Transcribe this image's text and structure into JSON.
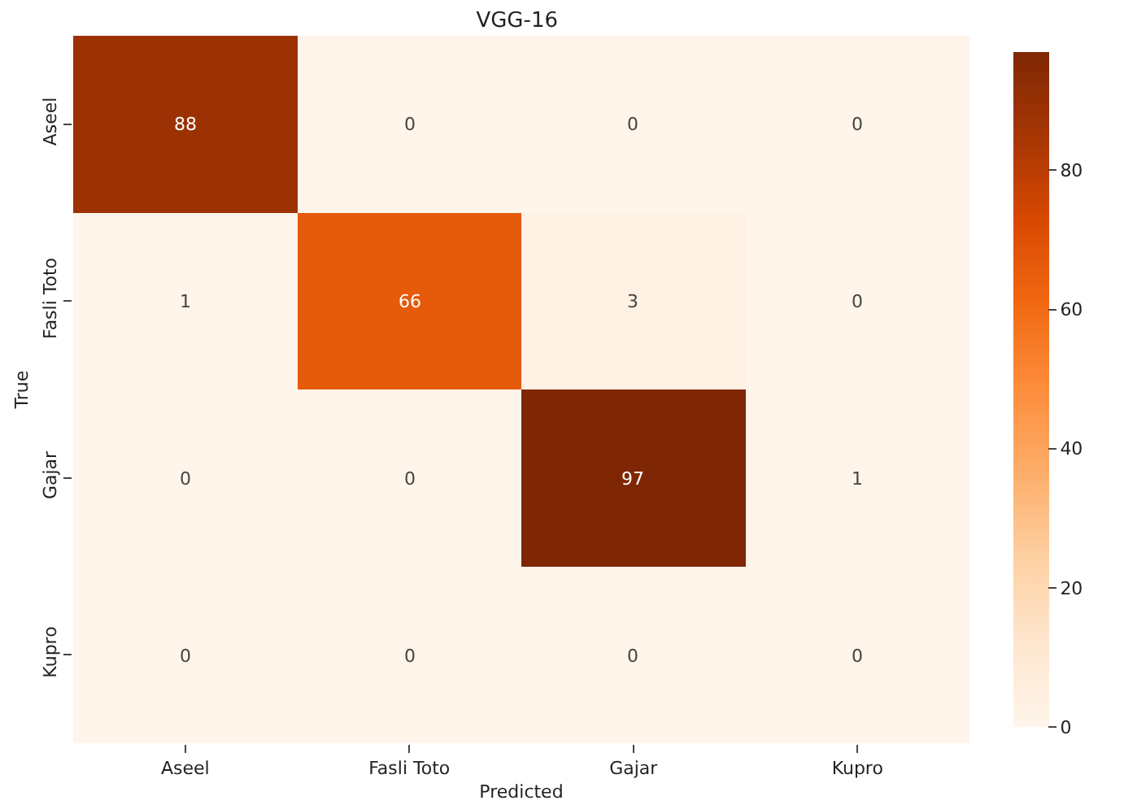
{
  "chart_data": {
    "type": "heatmap",
    "title": "VGG-16",
    "xlabel": "Predicted",
    "ylabel": "True",
    "categories": [
      "Aseel",
      "Fasli Toto",
      "Gajar",
      "Kupro"
    ],
    "y_categories": [
      "Aseel",
      "Fasli Toto",
      "Gajar",
      "Kupro"
    ],
    "cells": [
      [
        88,
        0,
        0,
        0
      ],
      [
        1,
        66,
        3,
        0
      ],
      [
        0,
        0,
        97,
        1
      ],
      [
        0,
        0,
        0,
        0
      ]
    ],
    "data_labels": true,
    "clim": [
      0,
      97
    ],
    "cticks": [
      0,
      20,
      40,
      60,
      80
    ]
  }
}
